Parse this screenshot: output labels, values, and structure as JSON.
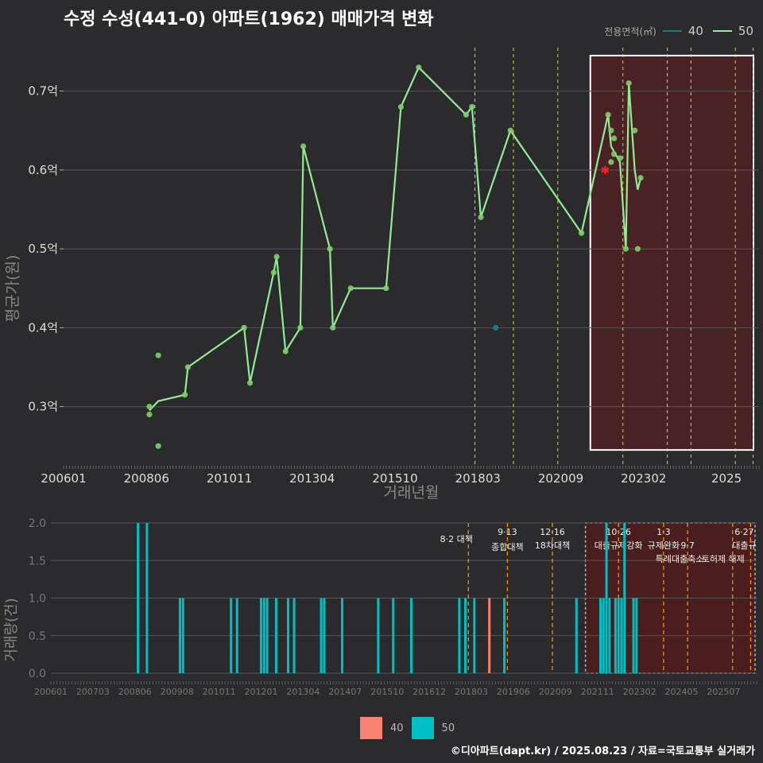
{
  "title": "수정 수성(441-0) 아파트(1962) 매매가격 변화",
  "legend": {
    "heading": "전용면적(㎡)",
    "items": [
      {
        "label": "40",
        "color": "#1a7a7f"
      },
      {
        "label": "50",
        "color": "#90ee90"
      }
    ]
  },
  "credit": "©디아파트(dapt.kr) / 2025.08.23 / 자료=국토교통부 실거래가",
  "colors": {
    "background": "#2b2b2d",
    "grid": "#555555",
    "line50": "#90ee90",
    "point50": "#7ccf6a",
    "point40": "#1a7a7f",
    "bar40": "#fa8072",
    "bar50": "#00bfc4",
    "policy": "#e6d600",
    "policyBottom": "#ff9900",
    "highlight": "#4a2226",
    "highlightBorder": "#ffffff",
    "starRed": "#ff2222"
  },
  "chart_data": [
    {
      "type": "line",
      "title": "수정 수성(441-0) 아파트(1962) 매매가격 변화",
      "xlabel": "거래년월",
      "ylabel": "평균가(원)",
      "x_tick_labels": [
        "200601",
        "200806",
        "201011",
        "201304",
        "201510",
        "201803",
        "202009",
        "202302",
        "2025"
      ],
      "x_range": [
        "2006-01",
        "2025-08"
      ],
      "y_tick_labels": [
        "0.3억",
        "0.4억",
        "0.5억",
        "0.6억",
        "0.7억"
      ],
      "y_ticks": [
        0.3,
        0.4,
        0.5,
        0.6,
        0.7
      ],
      "ylim": [
        0.225,
        0.755
      ],
      "policy_dates": [
        "2017-08",
        "2018-09",
        "2019-12",
        "2021-10",
        "2023-01",
        "2023-09",
        "2024-12",
        "2025-06"
      ],
      "highlight_range": [
        "2020-11",
        "2025-08"
      ],
      "series": [
        {
          "name": "50",
          "line": [
            [
              "2008-06",
              0.295
            ],
            [
              "2008-09",
              0.307
            ],
            [
              "2009-06",
              0.315
            ],
            [
              "2009-07",
              0.35
            ],
            [
              "2011-02",
              0.4
            ],
            [
              "2011-04",
              0.33
            ],
            [
              "2011-12",
              0.47
            ],
            [
              "2012-01",
              0.49
            ],
            [
              "2012-04",
              0.37
            ],
            [
              "2012-09",
              0.4
            ],
            [
              "2012-10",
              0.63
            ],
            [
              "2013-07",
              0.5
            ],
            [
              "2013-08",
              0.4
            ],
            [
              "2014-02",
              0.45
            ],
            [
              "2015-02",
              0.45
            ],
            [
              "2015-07",
              0.68
            ],
            [
              "2016-01",
              0.73
            ],
            [
              "2017-05",
              0.67
            ],
            [
              "2017-07",
              0.68
            ],
            [
              "2017-10",
              0.54
            ],
            [
              "2018-08",
              0.65
            ],
            [
              "2020-08",
              0.52
            ],
            [
              "2021-05",
              0.67
            ],
            [
              "2021-06",
              0.63
            ],
            [
              "2021-09",
              0.61
            ],
            [
              "2021-11",
              0.5
            ],
            [
              "2021-12",
              0.71
            ],
            [
              "2022-02",
              0.6
            ],
            [
              "2022-03",
              0.575
            ],
            [
              "2022-04",
              0.59
            ]
          ],
          "points": [
            [
              "2008-06",
              0.3
            ],
            [
              "2008-06",
              0.29
            ],
            [
              "2008-09",
              0.365
            ],
            [
              "2008-09",
              0.25
            ],
            [
              "2009-06",
              0.315
            ],
            [
              "2009-07",
              0.35
            ],
            [
              "2011-02",
              0.4
            ],
            [
              "2011-04",
              0.33
            ],
            [
              "2011-12",
              0.47
            ],
            [
              "2012-01",
              0.49
            ],
            [
              "2012-04",
              0.37
            ],
            [
              "2012-09",
              0.4
            ],
            [
              "2012-10",
              0.63
            ],
            [
              "2013-07",
              0.5
            ],
            [
              "2013-08",
              0.4
            ],
            [
              "2014-02",
              0.45
            ],
            [
              "2015-02",
              0.45
            ],
            [
              "2015-07",
              0.68
            ],
            [
              "2016-01",
              0.73
            ],
            [
              "2017-05",
              0.67
            ],
            [
              "2017-07",
              0.68
            ],
            [
              "2017-10",
              0.54
            ],
            [
              "2018-08",
              0.65
            ],
            [
              "2020-08",
              0.52
            ],
            [
              "2021-05",
              0.67
            ],
            [
              "2021-06",
              0.65
            ],
            [
              "2021-06",
              0.61
            ],
            [
              "2021-07",
              0.64
            ],
            [
              "2021-07",
              0.62
            ],
            [
              "2021-09",
              0.615
            ],
            [
              "2021-11",
              0.5
            ],
            [
              "2021-12",
              0.71
            ],
            [
              "2022-02",
              0.65
            ],
            [
              "2022-03",
              0.5
            ],
            [
              "2022-04",
              0.59
            ]
          ]
        },
        {
          "name": "40",
          "points": [
            [
              "2018-03",
              0.4
            ]
          ]
        }
      ],
      "markers": [
        {
          "x": "2021-04",
          "y": 0.6,
          "shape": "star"
        }
      ]
    },
    {
      "type": "bar",
      "xlabel": "",
      "ylabel": "거래량(건)",
      "x_tick_labels": [
        "200601",
        "200703",
        "200806",
        "200908",
        "201011",
        "201201",
        "201304",
        "201407",
        "201510",
        "201612",
        "201803",
        "201906",
        "202009",
        "202111",
        "202302",
        "202405",
        "202507"
      ],
      "y_tick_labels": [
        "0.0",
        "0.5",
        "1.0",
        "1.5",
        "2.0"
      ],
      "ylim": [
        0,
        2
      ],
      "policy_labels": [
        {
          "date": "2017-08",
          "label": "8·2 대책"
        },
        {
          "date": "2018-09",
          "label": "9·13 종합대책"
        },
        {
          "date": "2019-12",
          "label": "12·16 18차대책"
        },
        {
          "date": "2021-10",
          "label": "10·26 대출규제강화"
        },
        {
          "date": "2023-01",
          "label": "1·3 규제완화"
        },
        {
          "date": "2023-09",
          "label": "9·7 특례대출축소"
        },
        {
          "date": "2024-12",
          "label": "토허제 해제"
        },
        {
          "date": "2025-06",
          "label": "6·27 대출규"
        }
      ],
      "series": [
        {
          "name": "50",
          "values": [
            [
              "2008-06",
              2
            ],
            [
              "2008-09",
              2
            ],
            [
              "2009-08",
              1
            ],
            [
              "2009-09",
              1
            ],
            [
              "2011-01",
              1
            ],
            [
              "2011-03",
              1
            ],
            [
              "2011-11",
              1
            ],
            [
              "2011-12",
              1
            ],
            [
              "2012-01",
              1
            ],
            [
              "2012-04",
              1
            ],
            [
              "2012-08",
              1
            ],
            [
              "2012-10",
              1
            ],
            [
              "2013-07",
              1
            ],
            [
              "2013-08",
              1
            ],
            [
              "2014-02",
              1
            ],
            [
              "2015-02",
              1
            ],
            [
              "2015-07",
              1
            ],
            [
              "2016-01",
              1
            ],
            [
              "2017-05",
              1
            ],
            [
              "2017-07",
              1
            ],
            [
              "2017-10",
              1
            ],
            [
              "2018-08",
              1
            ],
            [
              "2020-08",
              1
            ],
            [
              "2021-04",
              1
            ],
            [
              "2021-05",
              1
            ],
            [
              "2021-06",
              2
            ],
            [
              "2021-07",
              1
            ],
            [
              "2021-09",
              1
            ],
            [
              "2021-10",
              1
            ],
            [
              "2021-11",
              1
            ],
            [
              "2021-12",
              2
            ],
            [
              "2022-03",
              1
            ],
            [
              "2022-04",
              1
            ]
          ]
        },
        {
          "name": "40",
          "values": [
            [
              "2018-03",
              1
            ]
          ]
        }
      ]
    }
  ],
  "bottom_legend": [
    {
      "label": "40",
      "color": "#fa8072"
    },
    {
      "label": "50",
      "color": "#00bfc4"
    }
  ]
}
